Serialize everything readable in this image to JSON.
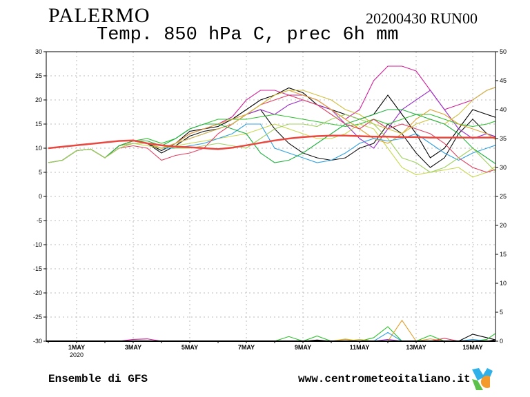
{
  "header": {
    "city": "PALERMO",
    "run": "20200430 RUN00",
    "subtitle": "Temp. 850 hPa C, prec 6h mm"
  },
  "footer": {
    "source": "Ensemble di GFS",
    "website": "www.centrometeoitaliano.it",
    "logo": "MC"
  },
  "chart_data": {
    "type": "line",
    "title": "Temp. 850 hPa C, prec 6h mm",
    "x": [
      "2020-04-30 00Z",
      "2020-04-30 12Z",
      "2020-05-01 00Z",
      "2020-05-01 12Z",
      "2020-05-02 00Z",
      "2020-05-02 12Z",
      "2020-05-03 00Z",
      "2020-05-03 12Z",
      "2020-05-04 00Z",
      "2020-05-04 12Z",
      "2020-05-05 00Z",
      "2020-05-05 12Z",
      "2020-05-06 00Z",
      "2020-05-06 12Z",
      "2020-05-07 00Z",
      "2020-05-07 12Z",
      "2020-05-08 00Z",
      "2020-05-08 12Z",
      "2020-05-09 00Z",
      "2020-05-09 12Z",
      "2020-05-10 00Z",
      "2020-05-10 12Z",
      "2020-05-11 00Z",
      "2020-05-11 12Z",
      "2020-05-12 00Z",
      "2020-05-12 12Z",
      "2020-05-13 00Z",
      "2020-05-13 12Z",
      "2020-05-14 00Z",
      "2020-05-14 12Z",
      "2020-05-15 00Z",
      "2020-05-15 12Z",
      "2020-05-16 00Z"
    ],
    "x_ticks": [
      {
        "label": "1MAY",
        "sub": "2020",
        "index": 2
      },
      {
        "label": "3MAY",
        "index": 6
      },
      {
        "label": "5MAY",
        "index": 10
      },
      {
        "label": "7MAY",
        "index": 14
      },
      {
        "label": "9MAY",
        "index": 18
      },
      {
        "label": "11MAY",
        "index": 22
      },
      {
        "label": "13MAY",
        "index": 26
      },
      {
        "label": "15MAY",
        "index": 30
      }
    ],
    "ylim_left": [
      -30,
      30
    ],
    "yticks_left": [
      30,
      25,
      20,
      15,
      10,
      5,
      0,
      -5,
      -10,
      -15,
      -20,
      -25,
      -30
    ],
    "ylim_right": [
      0,
      50
    ],
    "yticks_right": [
      50,
      45,
      40,
      35,
      30,
      25,
      20,
      15,
      10,
      5,
      0
    ],
    "grid": true,
    "climatology": {
      "color": "#e8483f",
      "values": [
        10,
        10.3,
        10.6,
        10.9,
        11.2,
        11.5,
        11.6,
        11,
        10.6,
        10.3,
        10.2,
        10,
        9.8,
        10.1,
        10.6,
        11.1,
        11.6,
        12,
        12.3,
        12.5,
        12.6,
        12.6,
        12.5,
        12.4,
        12.4,
        12.3,
        12.3,
        12.2,
        12.2,
        12.2,
        12.2,
        12.2,
        12.2
      ]
    },
    "series": [
      {
        "color": "#000000",
        "values": [
          7,
          7.5,
          9.5,
          9.8,
          8,
          10.5,
          11.5,
          11,
          9.5,
          11,
          13.5,
          14,
          14.5,
          16,
          18,
          20,
          21,
          22.5,
          21.5,
          19,
          18,
          17,
          16,
          17,
          21,
          17,
          13,
          8,
          10,
          14,
          18,
          17,
          16
        ],
        "precip": {
          "19": 0.2,
          "30": 1.2,
          "31": 0.6
        }
      },
      {
        "color": "#111111",
        "values": [
          7,
          7.5,
          9.5,
          9.8,
          8,
          10.5,
          11.5,
          11,
          9,
          10.5,
          12.5,
          13.5,
          14,
          15,
          17,
          18,
          14,
          11,
          9,
          8,
          7.5,
          8,
          10,
          11,
          15,
          13,
          9,
          6,
          8,
          13,
          16,
          13,
          12
        ],
        "precip": {
          "32": 0.4
        }
      },
      {
        "color": "#d0209a",
        "values": [
          7,
          7.5,
          9.5,
          9.8,
          8,
          10.5,
          11.5,
          11,
          10,
          11,
          13,
          14,
          15,
          16.5,
          20,
          22,
          22,
          21,
          21,
          20,
          18,
          16,
          18,
          24,
          27,
          27,
          26,
          22,
          18,
          19,
          20,
          22,
          23
        ],
        "precip": {
          "6": 0.3,
          "7": 0.4
        }
      },
      {
        "color": "#9a30c8",
        "values": [
          7,
          7.5,
          9.5,
          9.8,
          8,
          10.5,
          11,
          11,
          10,
          11,
          12,
          13,
          14,
          15,
          17,
          18,
          17,
          19,
          20,
          19,
          18,
          15,
          12,
          10,
          14,
          18,
          20,
          22,
          18,
          14,
          12,
          13,
          12
        ],
        "precip": {
          "24": 0.3
        }
      },
      {
        "color": "#30c030",
        "values": [
          7,
          7.5,
          9.5,
          9.8,
          8,
          10.5,
          11.5,
          12,
          11,
          12,
          14,
          15,
          16,
          16,
          16,
          16.5,
          17,
          16.5,
          16,
          15.5,
          15,
          14.5,
          15,
          16,
          15,
          16,
          17,
          17,
          16,
          15,
          14.5,
          15,
          16
        ],
        "precip": {
          "17": 0.8,
          "19": 0.9,
          "23": 0.6,
          "24": 2.5,
          "27": 1.0,
          "31": 0.3,
          "32": 2.0
        }
      },
      {
        "color": "#c8d850",
        "values": [
          7,
          7.5,
          9.5,
          9.8,
          8,
          10,
          11,
          10.5,
          10,
          10.5,
          11,
          11.5,
          12,
          12.5,
          13,
          14,
          15,
          14,
          13,
          12,
          12,
          13,
          15,
          14,
          10,
          6,
          4.5,
          5,
          5.5,
          6,
          4,
          5,
          7
        ],
        "precip": {
          "21": 0.4
        }
      },
      {
        "color": "#e0a030",
        "values": [
          7,
          7.5,
          9.5,
          9.8,
          8,
          10.5,
          11.5,
          11,
          10,
          11,
          13,
          14,
          15,
          16,
          17,
          19,
          21,
          22,
          21,
          20,
          18,
          16,
          14,
          12,
          11,
          13,
          16,
          18,
          17,
          15,
          14,
          13,
          11
        ],
        "precip": {
          "21": 0.3,
          "25": 3.6,
          "27": 0.4
        }
      },
      {
        "color": "#30a0e0",
        "values": [
          7,
          7.5,
          9.5,
          9.8,
          8,
          10.5,
          11,
          11,
          10,
          10,
          10.5,
          11,
          12,
          13,
          15,
          15,
          10,
          9,
          8,
          7,
          7.5,
          9,
          11,
          12,
          11.5,
          12,
          13,
          11,
          9,
          7.5,
          9,
          10,
          11
        ],
        "precip": {
          "24": 1.5,
          "30": 0.3
        }
      },
      {
        "color": "#e04060",
        "values": [
          7,
          7.5,
          9.5,
          9.8,
          8,
          10,
          10.5,
          10,
          7.5,
          8.5,
          9,
          10,
          13,
          15,
          17,
          19,
          20,
          21,
          20,
          19,
          17,
          15,
          14,
          16,
          14,
          15,
          14,
          13,
          11,
          8,
          6,
          5,
          6
        ],
        "precip": {
          "28": 0.5
        }
      },
      {
        "color": "#d0c040",
        "values": [
          7,
          7.5,
          9.5,
          9.8,
          8,
          10.5,
          11,
          11,
          10,
          11,
          12,
          13,
          14,
          15,
          17,
          19,
          21,
          22,
          22,
          21,
          20,
          18,
          17,
          15,
          14,
          13,
          15,
          16,
          15,
          17,
          20,
          22,
          23
        ],
        "precip": {
          "22": 0.3
        }
      },
      {
        "color": "#20b040",
        "values": [
          7,
          7.5,
          9.5,
          9.8,
          8,
          10.5,
          11.5,
          11.5,
          10.5,
          12,
          14,
          15,
          15,
          14,
          13,
          9,
          7,
          7.5,
          9,
          11,
          13,
          15,
          16,
          17,
          18,
          18,
          17,
          16,
          15,
          13,
          10,
          8,
          6
        ],
        "precip": {}
      },
      {
        "color": "#a0d060",
        "values": [
          7,
          7.5,
          9.5,
          9.8,
          8,
          10,
          11,
          11,
          10.5,
          10,
          10,
          10.5,
          11,
          10.5,
          10,
          12,
          14,
          15,
          15,
          14.5,
          16,
          17,
          16,
          15,
          12,
          8,
          7,
          5,
          6,
          8,
          10,
          7,
          4
        ],
        "precip": {}
      }
    ]
  }
}
